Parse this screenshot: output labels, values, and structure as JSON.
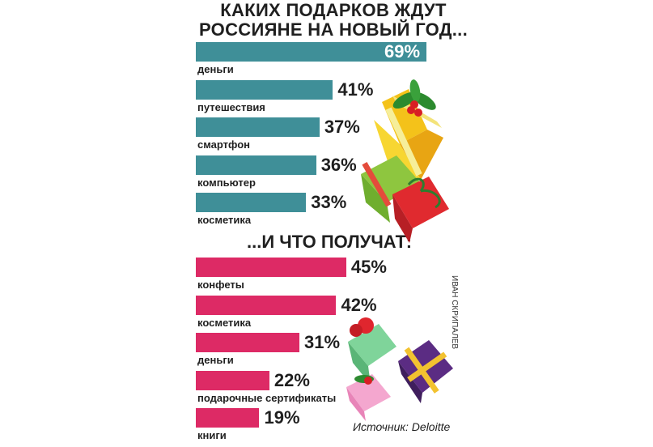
{
  "title_line1": "КАКИХ ПОДАРКОВ ЖДУТ",
  "title_line2": "РОССИЯНЕ НА НОВЫЙ ГОД...",
  "subtitle": "...И ЧТО ПОЛУЧАТ:",
  "source": "Источник: Deloitte",
  "author": "ИВАН СКРИПАЛЕВ",
  "colors": {
    "expected": "#3f8f98",
    "received": "#dd2a65"
  },
  "chart_data": [
    {
      "type": "bar",
      "orientation": "horizontal",
      "title": "КАКИХ ПОДАРКОВ ЖДУТ РОССИЯНЕ НА НОВЫЙ ГОД...",
      "categories": [
        "деньги",
        "путешествия",
        "смартфон",
        "компьютер",
        "косметика"
      ],
      "values": [
        69,
        41,
        37,
        36,
        33
      ],
      "labels": [
        "69%",
        "41%",
        "37%",
        "36%",
        "33%"
      ],
      "unit": "%",
      "xlim": [
        0,
        69
      ]
    },
    {
      "type": "bar",
      "orientation": "horizontal",
      "title": "...И ЧТО ПОЛУЧАТ:",
      "categories": [
        "конфеты",
        "косметика",
        "деньги",
        "подарочные сертификаты",
        "книги"
      ],
      "values": [
        45,
        42,
        31,
        22,
        19
      ],
      "labels": [
        "45%",
        "42%",
        "31%",
        "22%",
        "19%"
      ],
      "unit": "%",
      "xlim": [
        0,
        69
      ]
    }
  ]
}
